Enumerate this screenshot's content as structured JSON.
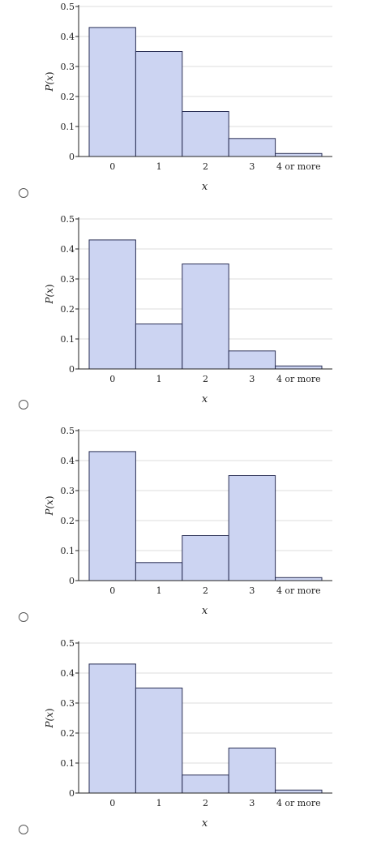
{
  "chart_data": [
    {
      "type": "bar",
      "categories": [
        "0",
        "1",
        "2",
        "3",
        "4 or more"
      ],
      "values": [
        0.43,
        0.35,
        0.15,
        0.06,
        0.01
      ],
      "xlabel": "x",
      "ylabel_var": "x",
      "ylabel_prefix": "P(",
      "ylabel_suffix": ")",
      "ylim": [
        0,
        0.5
      ],
      "yticks": [
        0,
        0.1,
        0.2,
        0.3,
        0.4,
        0.5
      ],
      "ytick_labels": [
        "0",
        "0.1",
        "0.2",
        "0.3",
        "0.4",
        "0.5"
      ],
      "grid": true,
      "bar_fill": "#ccd4f2",
      "bar_stroke": "#2a2f55"
    },
    {
      "type": "bar",
      "categories": [
        "0",
        "1",
        "2",
        "3",
        "4 or more"
      ],
      "values": [
        0.43,
        0.15,
        0.35,
        0.06,
        0.01
      ],
      "xlabel": "x",
      "ylabel_var": "x",
      "ylabel_prefix": "P(",
      "ylabel_suffix": ")",
      "ylim": [
        0,
        0.5
      ],
      "yticks": [
        0,
        0.1,
        0.2,
        0.3,
        0.4,
        0.5
      ],
      "ytick_labels": [
        "0",
        "0.1",
        "0.2",
        "0.3",
        "0.4",
        "0.5"
      ],
      "grid": true,
      "bar_fill": "#ccd4f2",
      "bar_stroke": "#2a2f55"
    },
    {
      "type": "bar",
      "categories": [
        "0",
        "1",
        "2",
        "3",
        "4 or more"
      ],
      "values": [
        0.43,
        0.06,
        0.15,
        0.35,
        0.01
      ],
      "xlabel": "x",
      "ylabel_var": "x",
      "ylabel_prefix": "P(",
      "ylabel_suffix": ")",
      "ylim": [
        0,
        0.5
      ],
      "yticks": [
        0,
        0.1,
        0.2,
        0.3,
        0.4,
        0.5
      ],
      "ytick_labels": [
        "0",
        "0.1",
        "0.2",
        "0.3",
        "0.4",
        "0.5"
      ],
      "grid": true,
      "bar_fill": "#ccd4f2",
      "bar_stroke": "#2a2f55"
    },
    {
      "type": "bar",
      "categories": [
        "0",
        "1",
        "2",
        "3",
        "4 or more"
      ],
      "values": [
        0.43,
        0.35,
        0.06,
        0.15,
        0.01
      ],
      "xlabel": "x",
      "ylabel_var": "x",
      "ylabel_prefix": "P(",
      "ylabel_suffix": ")",
      "ylim": [
        0,
        0.5
      ],
      "yticks": [
        0,
        0.1,
        0.2,
        0.3,
        0.4,
        0.5
      ],
      "ytick_labels": [
        "0",
        "0.1",
        "0.2",
        "0.3",
        "0.4",
        "0.5"
      ],
      "grid": true,
      "bar_fill": "#ccd4f2",
      "bar_stroke": "#2a2f55"
    }
  ]
}
